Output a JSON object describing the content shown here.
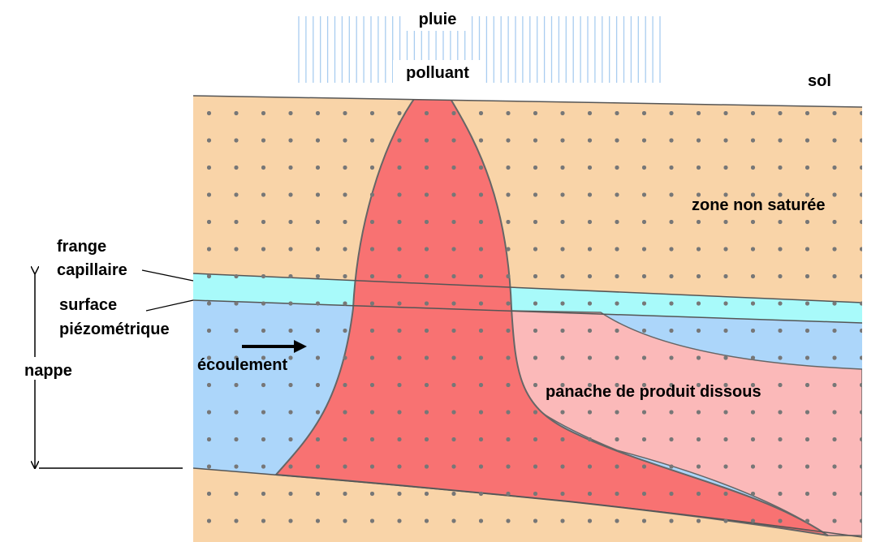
{
  "diagram": {
    "rain": "pluie",
    "pollutant": "polluant",
    "ground": "sol",
    "unsaturated_zone": "zone non saturée",
    "capillary_fringe": [
      "frange",
      "capillaire"
    ],
    "water_table": [
      "surface",
      "piézométrique"
    ],
    "aquifer": "nappe",
    "flow": "écoulement",
    "plume": "panache de produit dissous"
  }
}
